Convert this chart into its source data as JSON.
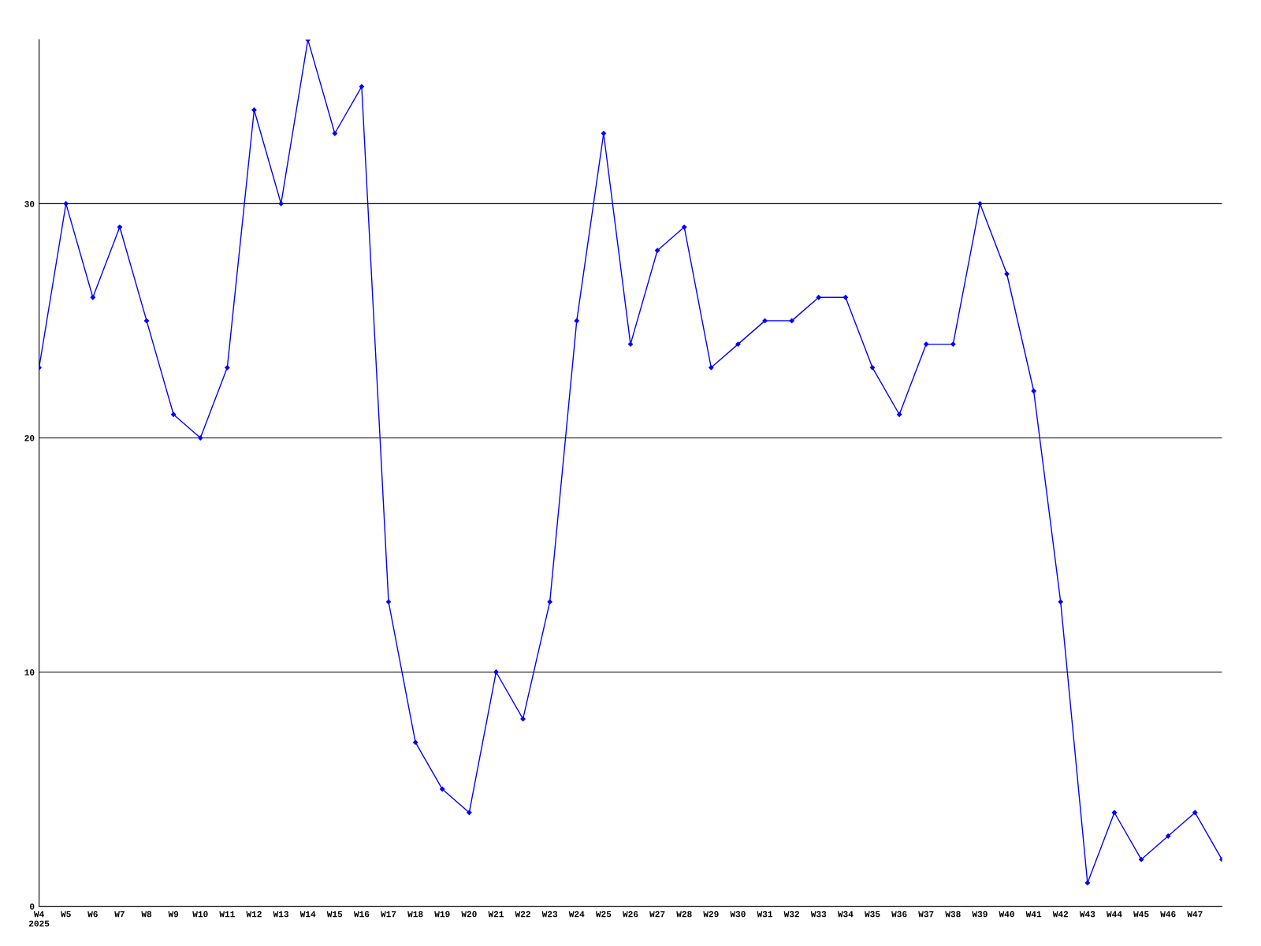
{
  "chart_data": {
    "type": "line",
    "categories": [
      "W4\n2025",
      "W5",
      "W6",
      "W7",
      "W8",
      "W9",
      "W10",
      "W11",
      "W12",
      "W13",
      "W14",
      "W15",
      "W16",
      "W17",
      "W18",
      "W19",
      "W20",
      "W21",
      "W22",
      "W23",
      "W24",
      "W25",
      "W26",
      "W27",
      "W28",
      "W29",
      "W30",
      "W31",
      "W32",
      "W33",
      "W34",
      "W35",
      "W36",
      "W37",
      "W38",
      "W39",
      "W40",
      "W41",
      "W42",
      "W43",
      "W44",
      "W45",
      "W46",
      "W47",
      null
    ],
    "series": [
      {
        "color": "#0000ff",
        "values": [
          23,
          30,
          26,
          29,
          25,
          21,
          20,
          23,
          34,
          30,
          37,
          33,
          35,
          13,
          7,
          5,
          4,
          10,
          8,
          13,
          25,
          33,
          24,
          28,
          29,
          23,
          24,
          25,
          25,
          26,
          26,
          23,
          21,
          24,
          24,
          30,
          27,
          22,
          13,
          1,
          4,
          2,
          3,
          4,
          2
        ]
      }
    ],
    "ylim": [
      0,
      37
    ],
    "yticks": [
      0,
      10,
      20,
      30
    ],
    "grid": "y",
    "marker": "diamond",
    "line_style": "solid",
    "legend": false
  }
}
